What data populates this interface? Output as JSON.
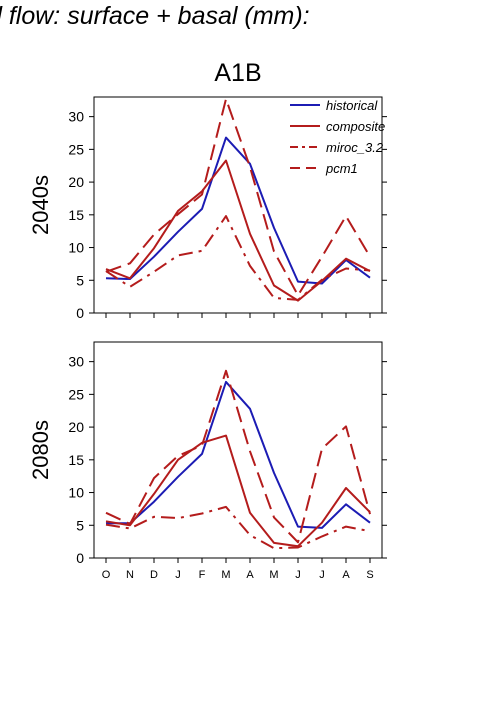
{
  "figure": {
    "title": "d flow: surface + basal (mm):",
    "scenario": "A1B"
  },
  "chart_data": [
    {
      "type": "line",
      "ylabel": "2040s",
      "xlabel": "",
      "categories": [
        "O",
        "N",
        "D",
        "J",
        "F",
        "M",
        "A",
        "M",
        "J",
        "J",
        "A",
        "S"
      ],
      "ylim": [
        0,
        33
      ],
      "yticks": [
        0,
        5,
        10,
        15,
        20,
        25,
        30
      ],
      "grid": false,
      "legend_position": "top-right",
      "series": [
        {
          "name": "historical",
          "style": "solid",
          "color": "#1c1cb4",
          "values": [
            5.3,
            5.2,
            8.6,
            12.4,
            15.9,
            26.8,
            22.8,
            13.0,
            4.8,
            4.5,
            8.1,
            5.4
          ]
        },
        {
          "name": "composite",
          "style": "solid",
          "color": "#b41c1c",
          "values": [
            6.7,
            5.3,
            9.9,
            15.6,
            18.6,
            23.3,
            12.1,
            4.2,
            1.9,
            4.9,
            8.3,
            6.4
          ]
        },
        {
          "name": "miroc_3.2",
          "style": "dashdot",
          "color": "#b41c1c",
          "values": [
            6.4,
            4.0,
            6.3,
            8.8,
            9.5,
            14.8,
            7.2,
            2.3,
            2.0,
            5.1,
            6.8,
            6.5
          ]
        },
        {
          "name": "pcm1",
          "style": "dashed",
          "color": "#b41c1c",
          "values": [
            6.3,
            7.6,
            12.0,
            15.1,
            18.1,
            32.7,
            22.3,
            9.4,
            2.7,
            8.6,
            14.8,
            8.6
          ]
        }
      ]
    },
    {
      "type": "line",
      "ylabel": "2080s",
      "xlabel": "",
      "categories": [
        "O",
        "N",
        "D",
        "J",
        "F",
        "M",
        "A",
        "M",
        "J",
        "J",
        "A",
        "S"
      ],
      "ylim": [
        0,
        33
      ],
      "yticks": [
        0,
        5,
        10,
        15,
        20,
        25,
        30
      ],
      "grid": false,
      "series": [
        {
          "name": "historical",
          "style": "solid",
          "color": "#1c1cb4",
          "values": [
            5.3,
            5.3,
            8.6,
            12.4,
            15.9,
            26.9,
            22.8,
            13.0,
            4.8,
            4.6,
            8.2,
            5.4
          ]
        },
        {
          "name": "composite",
          "style": "solid",
          "color": "#b41c1c",
          "values": [
            5.6,
            5.0,
            9.8,
            15.0,
            17.6,
            18.7,
            6.9,
            2.3,
            1.8,
            5.4,
            10.7,
            7.0
          ]
        },
        {
          "name": "miroc_3.2",
          "style": "dashdot",
          "color": "#b41c1c",
          "values": [
            5.1,
            4.5,
            6.3,
            6.1,
            6.8,
            7.8,
            3.5,
            1.5,
            1.6,
            3.3,
            4.8,
            4.1
          ]
        },
        {
          "name": "pcm1",
          "style": "dashed",
          "color": "#b41c1c",
          "values": [
            6.9,
            5.2,
            12.2,
            15.6,
            17.2,
            28.6,
            16.3,
            6.2,
            2.4,
            16.7,
            20.1,
            6.7
          ]
        }
      ]
    }
  ]
}
